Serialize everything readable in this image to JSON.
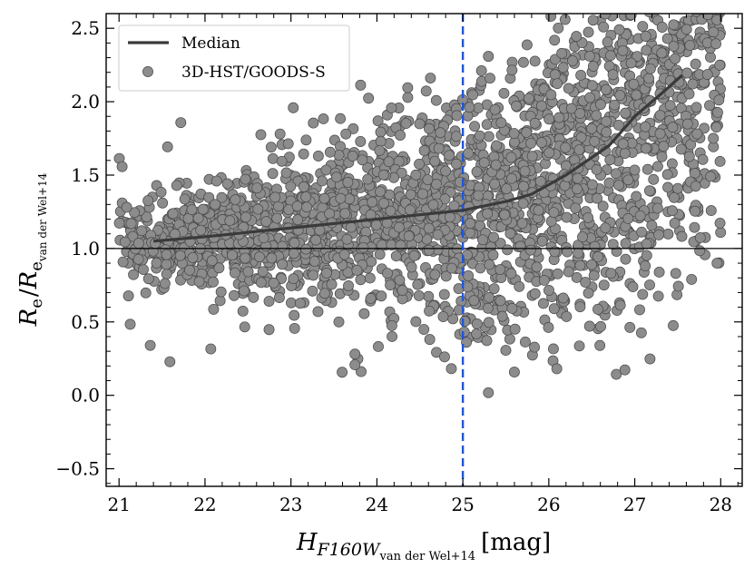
{
  "chart_data": {
    "type": "scatter",
    "xlabel_main": "H",
    "xlabel_sub": "F160W",
    "xlabel_subsub": "van der Wel+14",
    "xlabel_unit": "[mag]",
    "ylabel_main1": "R",
    "ylabel_sub1": "e",
    "ylabel_sep": "/",
    "ylabel_main2": "R",
    "ylabel_sub2": "e",
    "ylabel_subsub": "van der Wel+14",
    "xlim": [
      20.85,
      28.25
    ],
    "ylim": [
      -0.62,
      2.6
    ],
    "xticks": [
      21,
      22,
      23,
      24,
      25,
      26,
      27,
      28
    ],
    "yticks": [
      -0.5,
      0.0,
      0.5,
      1.0,
      1.5,
      2.0,
      2.5
    ],
    "ytick_labels": [
      "−0.5",
      "0.0",
      "0.5",
      "1.0",
      "1.5",
      "2.0",
      "2.5"
    ],
    "grid": false,
    "legend_position": "top-left",
    "reference_lines": {
      "horizontal_y": 1.0,
      "vertical_x": 25.0,
      "vertical_color": "#1f55d6"
    },
    "median_series": {
      "name": "Median",
      "color": "#3a3a3a",
      "x": [
        21.4,
        22.0,
        22.5,
        23.0,
        23.5,
        24.0,
        24.5,
        25.0,
        25.5,
        25.8,
        26.2,
        26.7,
        27.0,
        27.3,
        27.55
      ],
      "y": [
        1.05,
        1.08,
        1.11,
        1.14,
        1.17,
        1.2,
        1.23,
        1.26,
        1.32,
        1.37,
        1.5,
        1.7,
        1.9,
        2.05,
        2.18
      ]
    },
    "scatter_series": {
      "name": "3D-HST/GOODS-S",
      "color": "#8c8c8c",
      "edge_color": "#4a4a4a",
      "n_points": 2600,
      "x_range": [
        21.0,
        28.0
      ],
      "note": "dense cloud of galaxies"
    }
  }
}
